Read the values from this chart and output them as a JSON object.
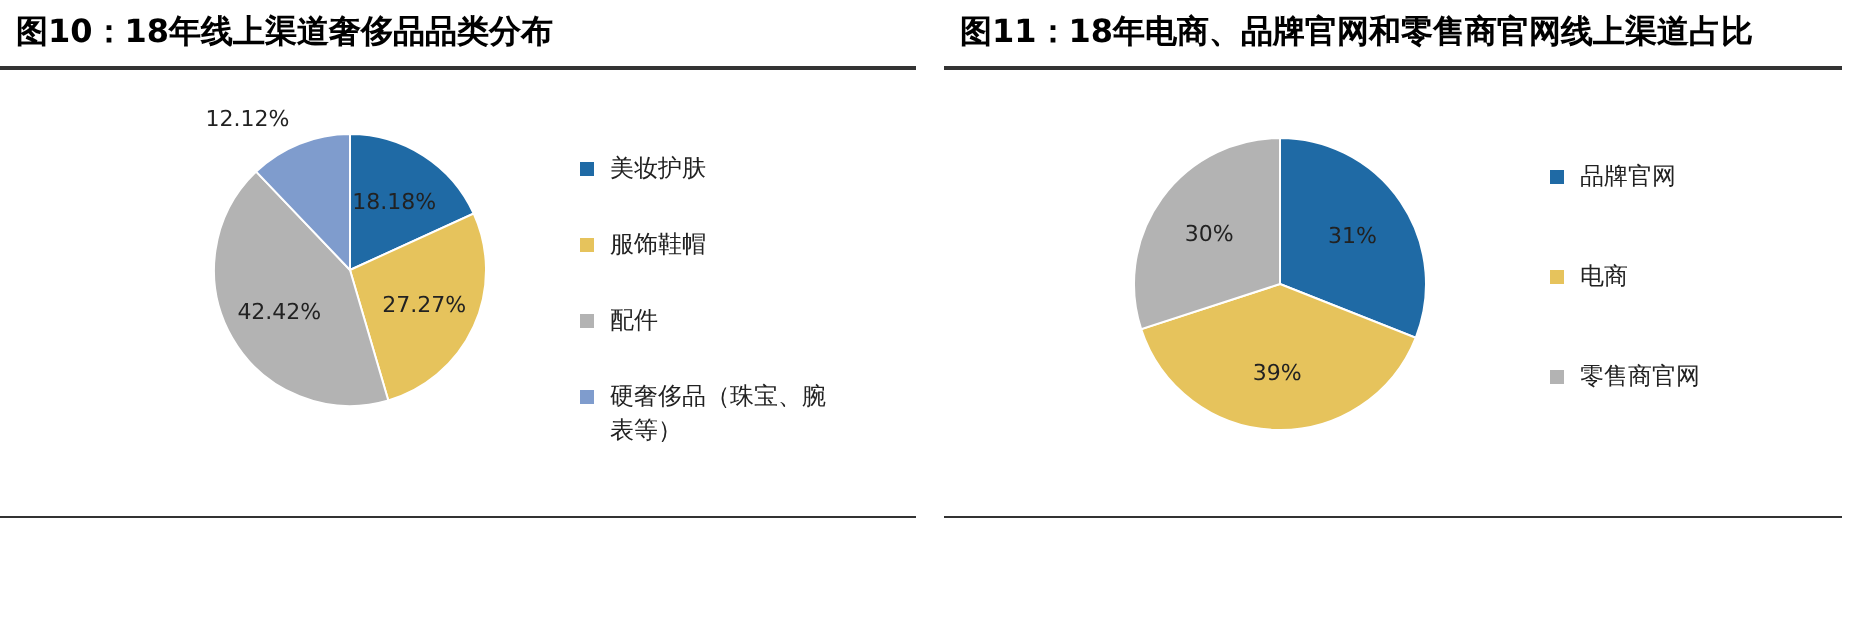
{
  "chart_data": [
    {
      "type": "pie",
      "title": "图10：18年线上渠道奢侈品品类分布",
      "categories": [
        "美妆护肤",
        "服饰鞋帽",
        "配件",
        "硬奢侈品（珠宝、腕表等）"
      ],
      "values": [
        18.18,
        27.27,
        42.42,
        12.12
      ],
      "value_labels": [
        "18.18%",
        "27.27%",
        "42.42%",
        "12.12%"
      ],
      "colors": [
        "#1f6aa5",
        "#e6c35c",
        "#b3b3b3",
        "#7f9ccd"
      ],
      "legend": "right"
    },
    {
      "type": "pie",
      "title": "图11：18年电商、品牌官网和零售商官网线上渠道占比",
      "categories": [
        "品牌官网",
        "电商",
        "零售商官网"
      ],
      "values": [
        31,
        39,
        30
      ],
      "value_labels": [
        "31%",
        "39%",
        "30%"
      ],
      "colors": [
        "#1f6aa5",
        "#e6c35c",
        "#b3b3b3"
      ],
      "legend": "right"
    }
  ]
}
